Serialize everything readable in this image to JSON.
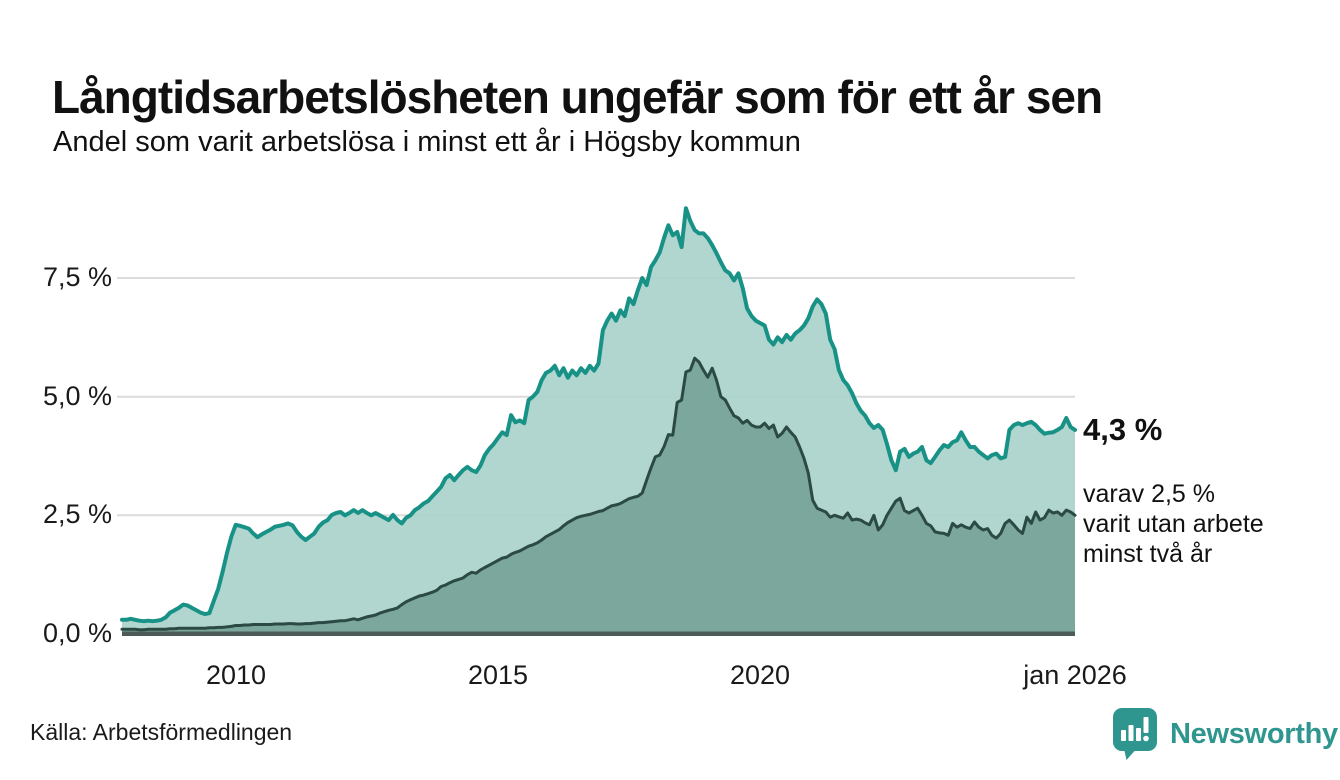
{
  "header": {
    "title": "Långtidsarbetslösheten ungefär som för ett år sen",
    "subtitle": "Andel som varit arbetslösa i minst ett år i Högsby kommun"
  },
  "annotation": {
    "value": "4,3 %",
    "note_line1": "varav 2,5 %",
    "note_line2": "varit utan arbete",
    "note_line3": "minst två år"
  },
  "source": {
    "label": "Källa: Arbetsförmedlingen"
  },
  "logo": {
    "text": "Newsworthy",
    "color": "#2e968e",
    "icon": "newsworthy-bubble-barchart-icon"
  },
  "colors": {
    "line_1yr": "#189286",
    "fill_1yr": "#a9d3cb",
    "line_2yr": "#2c4a44",
    "fill_2yr": "#79a49a",
    "axis_bar": "#4d5c58",
    "gridline": "#dcdcdc",
    "text": "#1a1a1a"
  },
  "chart_data": {
    "type": "area",
    "unit": "%",
    "interval": "monthly",
    "x_start": "2007-11",
    "x_end": "2026-01",
    "ylim": [
      0,
      9.2
    ],
    "grid": true,
    "legend_position": "none",
    "y_ticks": [
      {
        "label": "7,5 %",
        "value": 7.5
      },
      {
        "label": "5,0 %",
        "value": 5.0
      },
      {
        "label": "2,5 %",
        "value": 2.5
      },
      {
        "label": "0,0 %",
        "value": 0.0
      }
    ],
    "x_ticks": [
      {
        "label": "2010",
        "month_index": 26
      },
      {
        "label": "2015",
        "month_index": 86
      },
      {
        "label": "2020",
        "month_index": 146
      },
      {
        "label": "jan 2026",
        "month_index": 218
      }
    ],
    "series": [
      {
        "name": "Andel arbetslösa minst ett år",
        "end_label": "4,3 %",
        "values": [
          0.3,
          0.3,
          0.32,
          0.3,
          0.28,
          0.27,
          0.28,
          0.27,
          0.28,
          0.3,
          0.35,
          0.45,
          0.5,
          0.55,
          0.62,
          0.6,
          0.55,
          0.5,
          0.45,
          0.42,
          0.44,
          0.7,
          0.95,
          1.3,
          1.7,
          2.05,
          2.3,
          2.28,
          2.25,
          2.22,
          2.12,
          2.04,
          2.1,
          2.15,
          2.2,
          2.26,
          2.28,
          2.3,
          2.33,
          2.29,
          2.15,
          2.05,
          1.98,
          2.05,
          2.12,
          2.26,
          2.35,
          2.4,
          2.51,
          2.55,
          2.57,
          2.5,
          2.55,
          2.61,
          2.55,
          2.61,
          2.55,
          2.5,
          2.55,
          2.5,
          2.45,
          2.4,
          2.51,
          2.4,
          2.33,
          2.45,
          2.5,
          2.61,
          2.67,
          2.75,
          2.8,
          2.9,
          3.0,
          3.1,
          3.28,
          3.35,
          3.24,
          3.35,
          3.45,
          3.52,
          3.45,
          3.41,
          3.55,
          3.77,
          3.9,
          4.0,
          4.13,
          4.25,
          4.19,
          4.61,
          4.46,
          4.5,
          4.44,
          4.93,
          5.0,
          5.1,
          5.35,
          5.5,
          5.55,
          5.65,
          5.45,
          5.6,
          5.4,
          5.55,
          5.45,
          5.6,
          5.5,
          5.65,
          5.55,
          5.7,
          6.4,
          6.6,
          6.75,
          6.6,
          6.82,
          6.7,
          7.07,
          6.95,
          7.24,
          7.5,
          7.35,
          7.73,
          7.87,
          8.04,
          8.35,
          8.61,
          8.4,
          8.47,
          8.15,
          8.97,
          8.7,
          8.51,
          8.44,
          8.44,
          8.34,
          8.19,
          8.02,
          7.83,
          7.66,
          7.6,
          7.45,
          7.6,
          7.28,
          6.86,
          6.7,
          6.6,
          6.55,
          6.5,
          6.2,
          6.1,
          6.25,
          6.15,
          6.3,
          6.2,
          6.33,
          6.4,
          6.5,
          6.65,
          6.9,
          7.05,
          6.95,
          6.75,
          6.2,
          6.0,
          5.56,
          5.35,
          5.24,
          5.07,
          4.86,
          4.7,
          4.6,
          4.44,
          4.34,
          4.4,
          4.3,
          4.0,
          3.66,
          3.45,
          3.84,
          3.9,
          3.73,
          3.8,
          3.84,
          3.94,
          3.66,
          3.6,
          3.73,
          3.87,
          3.98,
          3.94,
          4.04,
          4.08,
          4.25,
          4.08,
          3.94,
          3.94,
          3.84,
          3.77,
          3.7,
          3.77,
          3.8,
          3.7,
          3.73,
          4.3,
          4.4,
          4.44,
          4.4,
          4.44,
          4.47,
          4.4,
          4.3,
          4.22,
          4.24,
          4.25,
          4.3,
          4.36,
          4.55,
          4.36,
          4.3
        ]
      },
      {
        "name": "Andel utan arbete minst två år",
        "end_label": "2,5 %",
        "values": [
          0.1,
          0.1,
          0.1,
          0.1,
          0.09,
          0.09,
          0.1,
          0.1,
          0.1,
          0.1,
          0.1,
          0.11,
          0.11,
          0.12,
          0.12,
          0.12,
          0.12,
          0.12,
          0.12,
          0.12,
          0.13,
          0.13,
          0.14,
          0.14,
          0.15,
          0.16,
          0.18,
          0.18,
          0.19,
          0.19,
          0.2,
          0.2,
          0.2,
          0.2,
          0.2,
          0.21,
          0.21,
          0.21,
          0.22,
          0.22,
          0.21,
          0.21,
          0.22,
          0.22,
          0.23,
          0.24,
          0.24,
          0.25,
          0.26,
          0.27,
          0.28,
          0.28,
          0.3,
          0.32,
          0.3,
          0.33,
          0.36,
          0.38,
          0.4,
          0.44,
          0.47,
          0.5,
          0.52,
          0.55,
          0.62,
          0.68,
          0.72,
          0.76,
          0.8,
          0.82,
          0.85,
          0.88,
          0.92,
          1.0,
          1.03,
          1.08,
          1.12,
          1.15,
          1.18,
          1.25,
          1.3,
          1.28,
          1.35,
          1.4,
          1.45,
          1.5,
          1.55,
          1.6,
          1.62,
          1.68,
          1.72,
          1.75,
          1.8,
          1.85,
          1.88,
          1.92,
          1.98,
          2.05,
          2.1,
          2.15,
          2.2,
          2.28,
          2.35,
          2.4,
          2.45,
          2.48,
          2.5,
          2.52,
          2.55,
          2.58,
          2.6,
          2.65,
          2.7,
          2.72,
          2.75,
          2.8,
          2.85,
          2.88,
          2.9,
          2.97,
          3.24,
          3.5,
          3.73,
          3.77,
          3.95,
          4.2,
          4.19,
          4.88,
          4.93,
          5.52,
          5.56,
          5.81,
          5.73,
          5.56,
          5.41,
          5.6,
          5.35,
          5.0,
          4.93,
          4.76,
          4.6,
          4.55,
          4.44,
          4.5,
          4.4,
          4.36,
          4.36,
          4.44,
          4.33,
          4.4,
          4.15,
          4.23,
          4.36,
          4.25,
          4.15,
          3.94,
          3.7,
          3.39,
          2.82,
          2.65,
          2.61,
          2.57,
          2.46,
          2.5,
          2.47,
          2.44,
          2.55,
          2.4,
          2.42,
          2.4,
          2.34,
          2.3,
          2.5,
          2.19,
          2.3,
          2.5,
          2.65,
          2.8,
          2.86,
          2.6,
          2.55,
          2.6,
          2.65,
          2.5,
          2.33,
          2.28,
          2.15,
          2.13,
          2.12,
          2.08,
          2.33,
          2.25,
          2.3,
          2.25,
          2.22,
          2.36,
          2.25,
          2.19,
          2.22,
          2.08,
          2.02,
          2.12,
          2.33,
          2.4,
          2.3,
          2.19,
          2.12,
          2.46,
          2.33,
          2.57,
          2.4,
          2.45,
          2.61,
          2.55,
          2.57,
          2.5,
          2.61,
          2.57,
          2.5
        ]
      }
    ]
  }
}
